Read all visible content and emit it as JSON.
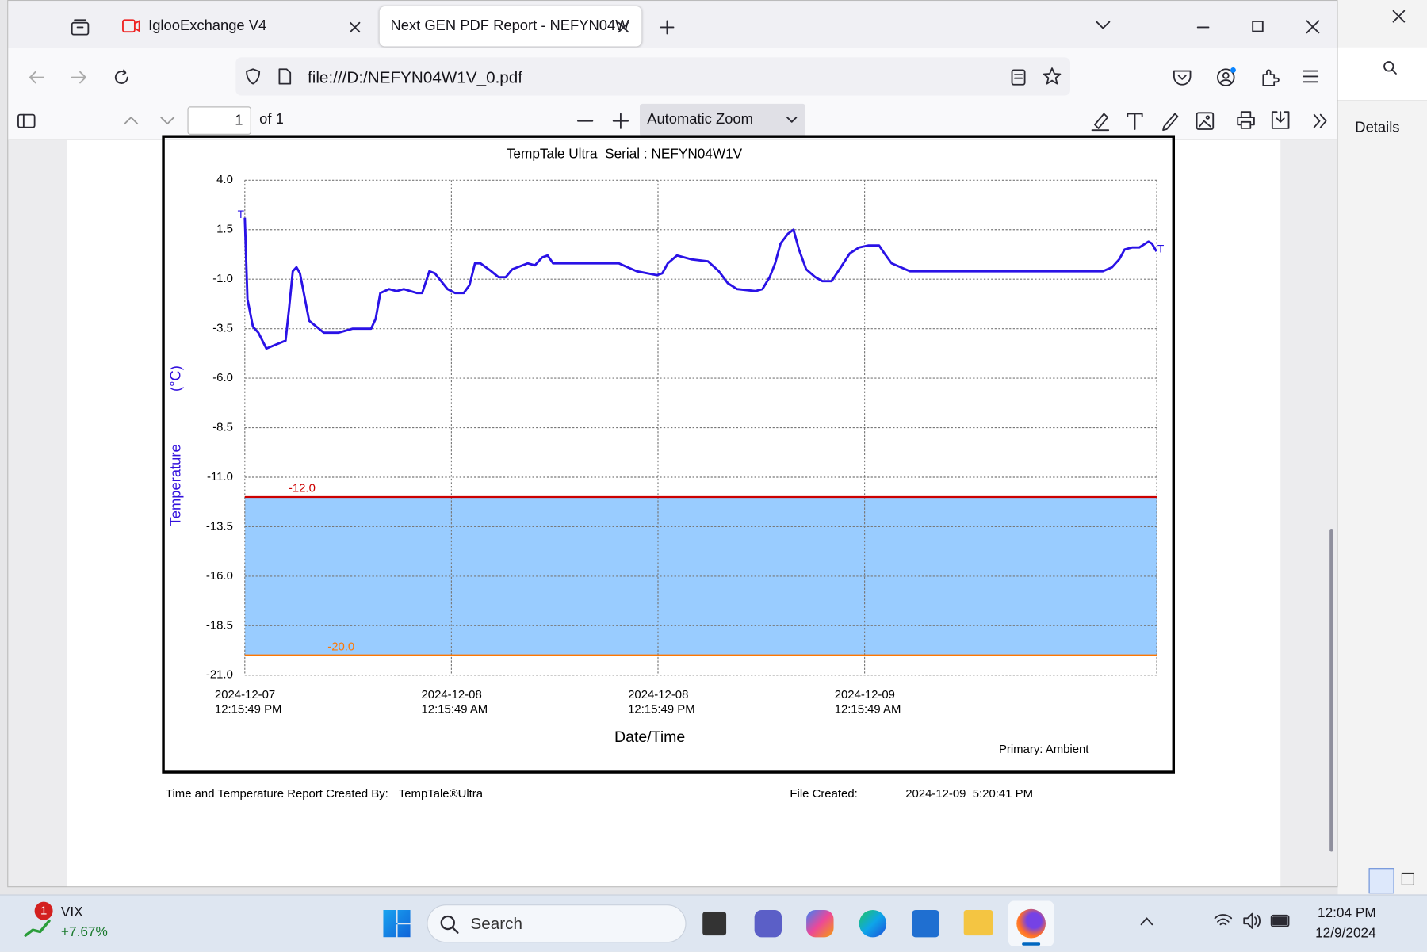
{
  "browser": {
    "tabs": [
      {
        "title": "IglooExchange V4"
      },
      {
        "title": "Next GEN PDF Report - NEFYN04W"
      }
    ],
    "url": "file:///D:/NEFYN04W1V_0.pdf",
    "pdf_toolbar": {
      "page": "1",
      "page_count": "of 1",
      "zoom": "Automatic Zoom"
    },
    "side_window": {
      "details": "Details"
    }
  },
  "chart_data": {
    "type": "line",
    "title": "TempTale Ultra  Serial : NEFYN04W1V",
    "xlabel": "Date/Time",
    "ylabel": "Temperature",
    "ylabel_unit": "(°C)",
    "note": "Primary: Ambient",
    "color": "#2a12e6",
    "grid": true,
    "xlim": [
      "2024-12-07 12:15:49",
      "2024-12-09 17:13:49"
    ],
    "xticks": [
      {
        "value": "2024-12-07 12:15:49",
        "label": [
          "2024-12-07",
          "12:15:49 PM"
        ]
      },
      {
        "value": "2024-12-08 00:15:49",
        "label": [
          "2024-12-08",
          "12:15:49 AM"
        ]
      },
      {
        "value": "2024-12-08 12:15:49",
        "label": [
          "2024-12-08",
          "12:15:49 PM"
        ]
      },
      {
        "value": "2024-12-09 00:15:49",
        "label": [
          "2024-12-09",
          "12:15:49 AM"
        ]
      }
    ],
    "ylim": [
      -21,
      4
    ],
    "yticks": [
      {
        "value": 4,
        "label": "4.0"
      },
      {
        "value": 1.5,
        "label": "1.5"
      },
      {
        "value": -1,
        "label": "-1.0"
      },
      {
        "value": -3.5,
        "label": "-3.5"
      },
      {
        "value": -6,
        "label": "-6.0"
      },
      {
        "value": -8.5,
        "label": "-8.5"
      },
      {
        "value": -11,
        "label": "-11.0"
      },
      {
        "value": -13.5,
        "label": "-13.5"
      },
      {
        "value": -16,
        "label": "-16.0"
      },
      {
        "value": -18.5,
        "label": "-18.5"
      },
      {
        "value": -21,
        "label": "-21.0"
      }
    ],
    "thresholds": [
      {
        "value": -12,
        "label": "-12.0",
        "color": "#cc0000"
      },
      {
        "value": -20,
        "label": "-20.0",
        "color": "#ff7700"
      }
    ],
    "band_color": "#99ccff",
    "trip_marks": [
      "T",
      "T"
    ],
    "x": [
      "2024-12-07 12:15:49",
      "2024-12-07 12:25",
      "2024-12-07 12:44",
      "2024-12-07 13:03",
      "2024-12-07 13:31",
      "2024-12-07 14:38",
      "2024-12-07 14:50",
      "2024-12-07 15:03",
      "2024-12-07 15:16",
      "2024-12-07 15:28",
      "2024-12-07 16:00",
      "2024-12-07 16:51",
      "2024-12-07 17:42",
      "2024-12-07 18:32",
      "2024-12-07 19:36",
      "2024-12-07 19:52",
      "2024-12-07 20:08",
      "2024-12-07 20:39",
      "2024-12-07 21:05",
      "2024-12-07 21:30",
      "2024-12-07 22:15",
      "2024-12-07 22:34",
      "2024-12-07 22:59",
      "2024-12-07 23:18",
      "2024-12-08 00:02",
      "2024-12-08 00:28",
      "2024-12-08 00:59",
      "2024-12-08 01:19",
      "2024-12-08 01:38",
      "2024-12-08 01:57",
      "2024-12-08 02:35",
      "2024-12-08 03:00",
      "2024-12-08 03:25",
      "2024-12-08 03:48",
      "2024-12-08 04:42",
      "2024-12-08 05:07",
      "2024-12-08 05:32",
      "2024-12-08 05:51",
      "2024-12-08 06:10",
      "2024-12-08 09:59",
      "2024-12-08 10:30",
      "2024-12-08 11:02",
      "2024-12-08 12:12",
      "2024-12-08 12:31",
      "2024-12-08 12:50",
      "2024-12-08 13:22",
      "2024-12-08 14:12",
      "2024-12-08 15:10",
      "2024-12-08 15:48",
      "2024-12-08 16:19",
      "2024-12-08 16:51",
      "2024-12-08 17:55",
      "2024-12-08 18:20",
      "2024-12-08 18:45",
      "2024-12-08 19:04",
      "2024-12-08 19:23",
      "2024-12-08 19:49",
      "2024-12-08 20:08",
      "2024-12-08 20:27",
      "2024-12-08 20:52",
      "2024-12-08 21:24",
      "2024-12-08 21:49",
      "2024-12-08 22:21",
      "2024-12-08 22:53",
      "2024-12-08 23:24",
      "2024-12-08 23:56",
      "2024-12-09 00:28",
      "2024-12-09 01:06",
      "2024-12-09 01:25",
      "2024-12-09 01:50",
      "2024-12-09 02:22",
      "2024-12-09 02:54",
      "2024-12-09 14:06",
      "2024-12-09 14:38",
      "2024-12-09 15:03",
      "2024-12-09 15:22",
      "2024-12-09 15:48",
      "2024-12-09 16:13",
      "2024-12-09 16:45",
      "2024-12-09 16:57",
      "2024-12-09 17:13"
    ],
    "values": [
      2.1,
      -2.0,
      -3.4,
      -3.7,
      -4.5,
      -4.1,
      -2.5,
      -0.6,
      -0.4,
      -0.7,
      -3.1,
      -3.7,
      -3.7,
      -3.5,
      -3.5,
      -3.0,
      -1.7,
      -1.5,
      -1.6,
      -1.5,
      -1.7,
      -1.7,
      -0.6,
      -0.7,
      -1.5,
      -1.7,
      -1.7,
      -1.3,
      -0.2,
      -0.2,
      -0.6,
      -0.9,
      -0.9,
      -0.5,
      -0.2,
      -0.3,
      0.1,
      0.2,
      -0.2,
      -0.2,
      -0.4,
      -0.6,
      -0.8,
      -0.7,
      -0.2,
      0.2,
      0.0,
      -0.1,
      -0.6,
      -1.2,
      -1.5,
      -1.6,
      -1.5,
      -0.9,
      -0.2,
      0.8,
      1.3,
      1.5,
      0.5,
      -0.5,
      -0.9,
      -1.1,
      -1.1,
      -0.4,
      0.3,
      0.6,
      0.7,
      0.7,
      0.3,
      -0.2,
      -0.4,
      -0.6,
      -0.6,
      -0.4,
      0.0,
      0.5,
      0.6,
      0.6,
      0.9,
      0.8,
      0.4
    ]
  },
  "report_footer": {
    "created_by_label": "Time and Temperature Report Created By:",
    "created_by": "TempTale®Ultra",
    "file_created_label": "File Created:",
    "file_created": "2024-12-09  5:20:41 PM"
  },
  "taskbar": {
    "widget_badge": "1",
    "widget_name": "VIX",
    "widget_value": "+7.67%",
    "search": "Search",
    "time": "12:04 PM",
    "date": "12/9/2024"
  }
}
